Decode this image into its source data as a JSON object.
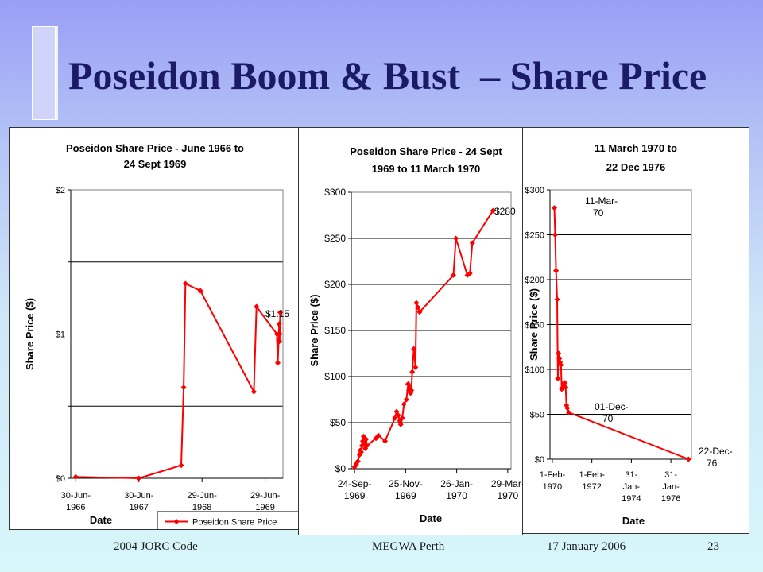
{
  "slide": {
    "title": "Poseidon Boom & Bust  – Share Price",
    "footer": {
      "left": "2004 JORC Code",
      "center": "MEGWA Perth",
      "date": "17  January 2006",
      "page": "23"
    }
  },
  "chart_data": [
    {
      "type": "line",
      "title_lines": [
        "Poseidon Share Price - June 1966 to",
        "24 Sept 1969"
      ],
      "xlabel": "Date",
      "ylabel": "Share Price ($)",
      "ylim": [
        0,
        2
      ],
      "yticks": [
        {
          "v": 0,
          "label": "$0"
        },
        {
          "v": 1,
          "label": "$1"
        },
        {
          "v": 2,
          "label": "$2"
        }
      ],
      "yminor": [
        0.5,
        1.5
      ],
      "xlim": [
        "1966-06-01",
        "1969-10-10"
      ],
      "xticks": [
        {
          "v": "1966-06-30",
          "lines": [
            "30-Jun-",
            "1966"
          ]
        },
        {
          "v": "1967-06-30",
          "lines": [
            "30-Jun-",
            "1967"
          ]
        },
        {
          "v": "1968-06-29",
          "lines": [
            "29-Jun-",
            "1968"
          ]
        },
        {
          "v": "1969-06-29",
          "lines": [
            "29-Jun-",
            "1969"
          ]
        }
      ],
      "legend": "Poseidon Share Price",
      "annotations": [
        {
          "text": "$1.15"
        }
      ],
      "series": [
        {
          "name": "Poseidon Share Price",
          "color": "#ff0000",
          "x": [
            "1966-06-30",
            "1967-06-30",
            "1968-03-01",
            "1968-03-15",
            "1968-03-25",
            "1968-06-20",
            "1969-04-25",
            "1969-05-10",
            "1969-09-05",
            "1969-09-10",
            "1969-09-15",
            "1969-09-18",
            "1969-09-20",
            "1969-09-22",
            "1969-09-24"
          ],
          "y": [
            0.01,
            0.0,
            0.09,
            0.63,
            1.35,
            1.3,
            0.6,
            1.19,
            1.0,
            0.8,
            0.96,
            1.07,
            0.95,
            1.0,
            1.15
          ]
        }
      ]
    },
    {
      "type": "line",
      "title_lines": [
        "Poseidon Share Price - 24 Sept",
        "1969 to  11 March 1970"
      ],
      "xlabel": "Date",
      "ylabel": "Share Price ($)",
      "ylim": [
        0,
        300
      ],
      "yticks": [
        {
          "v": 0,
          "label": "$0"
        },
        {
          "v": 50,
          "label": "$50"
        },
        {
          "v": 100,
          "label": "$100"
        },
        {
          "v": 150,
          "label": "$150"
        },
        {
          "v": 200,
          "label": "$200"
        },
        {
          "v": 250,
          "label": "$250"
        },
        {
          "v": 300,
          "label": "$300"
        }
      ],
      "xlim": [
        "1969-09-20",
        "1970-04-02"
      ],
      "xticks": [
        {
          "v": "1969-09-24",
          "lines": [
            "24-Sep-",
            "1969"
          ]
        },
        {
          "v": "1969-11-25",
          "lines": [
            "25-Nov-",
            "1969"
          ]
        },
        {
          "v": "1970-01-26",
          "lines": [
            "26-Jan-",
            "1970"
          ]
        },
        {
          "v": "1970-03-29",
          "lines": [
            "29-Mar-",
            "1970"
          ]
        }
      ],
      "annotations": [
        {
          "text": "$280"
        }
      ],
      "series": [
        {
          "name": "Poseidon Share Price",
          "color": "#ff0000",
          "x": [
            "1969-09-24",
            "1969-09-26",
            "1969-09-28",
            "1969-09-30",
            "1969-10-01",
            "1969-10-02",
            "1969-10-03",
            "1969-10-04",
            "1969-10-05",
            "1969-10-06",
            "1969-10-07",
            "1969-10-08",
            "1969-10-09",
            "1969-10-20",
            "1969-10-23",
            "1969-10-31",
            "1969-11-12",
            "1969-11-14",
            "1969-11-16",
            "1969-11-18",
            "1969-11-19",
            "1969-11-21",
            "1969-11-23",
            "1969-11-26",
            "1969-11-28",
            "1969-11-29",
            "1969-11-30",
            "1969-12-01",
            "1969-12-02",
            "1969-12-03",
            "1969-12-05",
            "1969-12-07",
            "1969-12-08",
            "1969-12-10",
            "1969-12-12",
            "1970-01-22",
            "1970-01-25",
            "1970-02-08",
            "1970-02-11",
            "1970-02-14",
            "1970-03-11"
          ],
          "y": [
            2,
            5,
            8,
            15,
            20,
            18,
            25,
            30,
            35,
            28,
            22,
            32,
            25,
            33,
            36,
            30,
            55,
            62,
            58,
            52,
            48,
            55,
            70,
            75,
            92,
            85,
            88,
            82,
            85,
            105,
            130,
            110,
            180,
            175,
            170,
            210,
            250,
            210,
            212,
            245,
            280
          ]
        }
      ]
    },
    {
      "type": "line",
      "title_lines": [
        "11 March 1970 to",
        "22 Dec 1976"
      ],
      "xlabel": "Date",
      "ylabel": "Share Price ($)",
      "ylim": [
        0,
        300
      ],
      "yticks": [
        {
          "v": 0,
          "label": "$0"
        },
        {
          "v": 50,
          "label": "$50"
        },
        {
          "v": 100,
          "label": "$100"
        },
        {
          "v": 150,
          "label": "$150"
        },
        {
          "v": 200,
          "label": "$200"
        },
        {
          "v": 250,
          "label": "$250"
        },
        {
          "v": 300,
          "label": "$300"
        }
      ],
      "xlim": [
        "1969-12-20",
        "1977-02-14"
      ],
      "xticks": [
        {
          "v": "1970-02-01",
          "lines": [
            "1-Feb-",
            "1970"
          ]
        },
        {
          "v": "1972-02-01",
          "lines": [
            "1-Feb-",
            "1972"
          ]
        },
        {
          "v": "1974-01-31",
          "lines": [
            "31-",
            "Jan-",
            "1974"
          ]
        },
        {
          "v": "1976-01-31",
          "lines": [
            "31-",
            "Jan-",
            "1976"
          ]
        }
      ],
      "annotations": [
        {
          "lines": [
            "11-Mar-",
            "70"
          ]
        },
        {
          "lines": [
            "01-Dec-",
            "70"
          ]
        },
        {
          "lines": [
            "22-Dec-",
            "76"
          ]
        }
      ],
      "series": [
        {
          "name": "Poseidon Share Price",
          "color": "#ff0000",
          "x": [
            "1970-03-11",
            "1970-03-25",
            "1970-04-10",
            "1970-05-01",
            "1970-05-15",
            "1970-05-25",
            "1970-06-10",
            "1970-06-25",
            "1970-07-10",
            "1970-07-25",
            "1970-08-10",
            "1970-08-25",
            "1970-09-10",
            "1970-09-20",
            "1970-10-05",
            "1970-10-20",
            "1970-11-05",
            "1970-12-01",
            "1976-12-22"
          ],
          "y": [
            280,
            250,
            210,
            178,
            90,
            118,
            112,
            108,
            105,
            78,
            80,
            84,
            82,
            85,
            80,
            60,
            57,
            52,
            0
          ]
        }
      ]
    }
  ]
}
